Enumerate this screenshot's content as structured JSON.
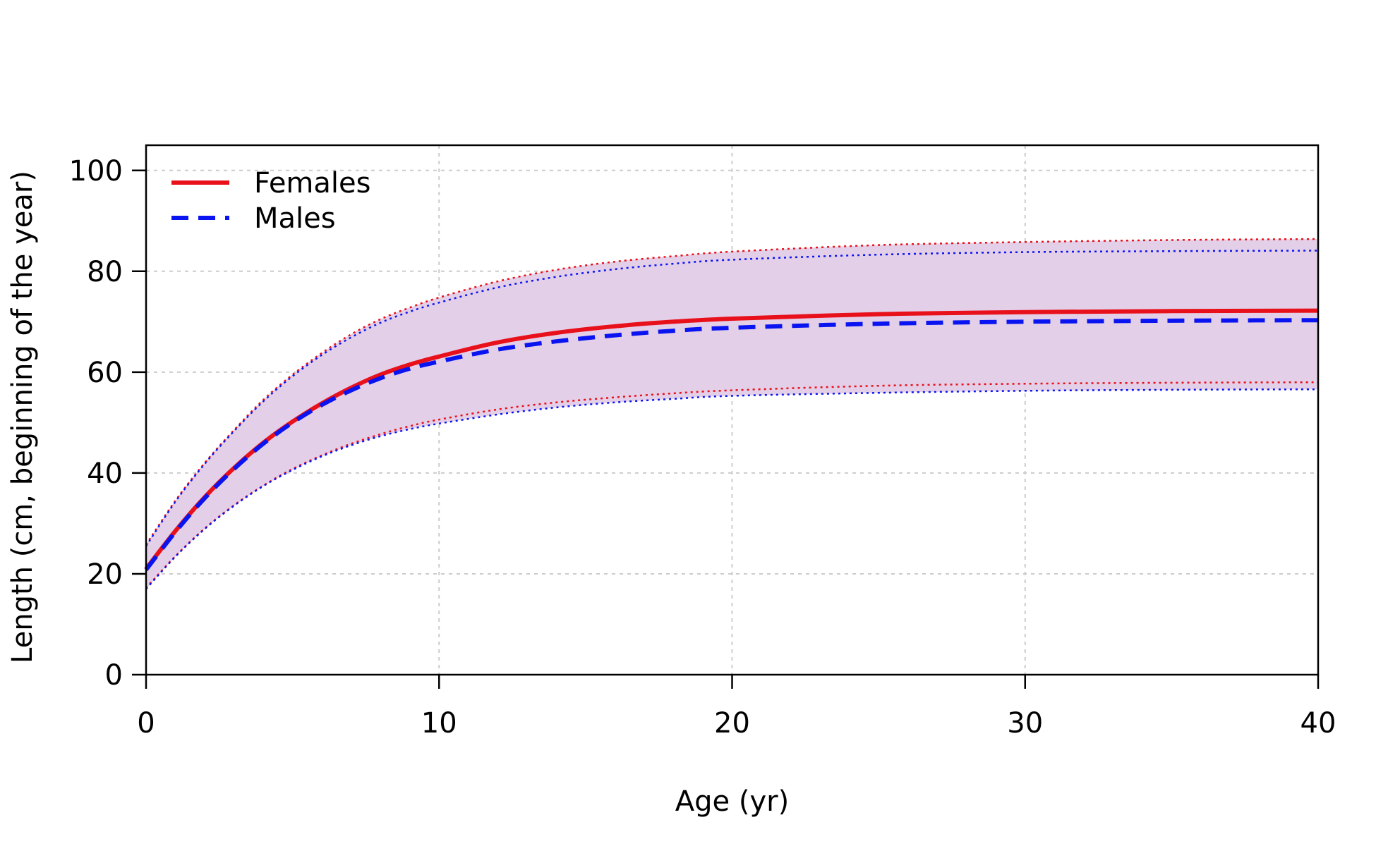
{
  "chart_data": {
    "type": "line",
    "xlabel": "Age (yr)",
    "ylabel": "Length (cm, beginning of the year)",
    "xlim": [
      0,
      40
    ],
    "ylim": [
      0,
      105
    ],
    "xticks": [
      0,
      10,
      20,
      30,
      40
    ],
    "yticks": [
      0,
      20,
      40,
      60,
      80,
      100
    ],
    "grid": true,
    "legend_position": "top-left",
    "x": [
      0,
      1,
      2,
      3,
      4,
      5,
      6,
      7,
      8,
      9,
      10,
      12,
      14,
      16,
      18,
      20,
      25,
      30,
      35,
      40
    ],
    "series": [
      {
        "name": "Females",
        "color": "#e8101a",
        "style": "solid",
        "values": [
          21.0,
          28.5,
          35.2,
          41.0,
          46.0,
          50.2,
          53.8,
          56.9,
          59.5,
          61.5,
          63.1,
          65.9,
          67.8,
          69.1,
          70.0,
          70.6,
          71.5,
          71.9,
          72.1,
          72.2
        ],
        "lower": [
          17.2,
          23.5,
          29.0,
          33.6,
          37.5,
          40.8,
          43.5,
          45.8,
          47.7,
          49.3,
          50.6,
          52.6,
          54.0,
          55.0,
          55.8,
          56.4,
          57.3,
          57.7,
          57.9,
          58.0
        ],
        "upper": [
          25.8,
          34.5,
          42.0,
          48.5,
          54.5,
          59.5,
          63.8,
          67.5,
          70.5,
          72.8,
          74.8,
          78.0,
          80.3,
          81.9,
          83.0,
          83.9,
          85.2,
          85.8,
          86.2,
          86.4
        ]
      },
      {
        "name": "Males",
        "color": "#0a14f0",
        "style": "dashed",
        "values": [
          20.8,
          28.3,
          35.0,
          40.8,
          45.8,
          50.0,
          53.5,
          56.4,
          58.8,
          60.7,
          62.1,
          64.5,
          66.1,
          67.3,
          68.2,
          68.8,
          69.6,
          70.0,
          70.2,
          70.3
        ],
        "lower": [
          17.0,
          23.4,
          28.9,
          33.5,
          37.4,
          40.6,
          43.3,
          45.5,
          47.3,
          48.7,
          49.8,
          51.6,
          53.0,
          54.0,
          54.7,
          55.3,
          55.9,
          56.3,
          56.5,
          56.6
        ],
        "upper": [
          25.5,
          34.3,
          41.8,
          48.3,
          54.2,
          59.2,
          63.4,
          66.9,
          69.8,
          72.0,
          73.8,
          76.8,
          78.9,
          80.4,
          81.5,
          82.3,
          83.3,
          83.8,
          84.0,
          84.1
        ]
      }
    ],
    "band_color": "#e4cfe8"
  }
}
